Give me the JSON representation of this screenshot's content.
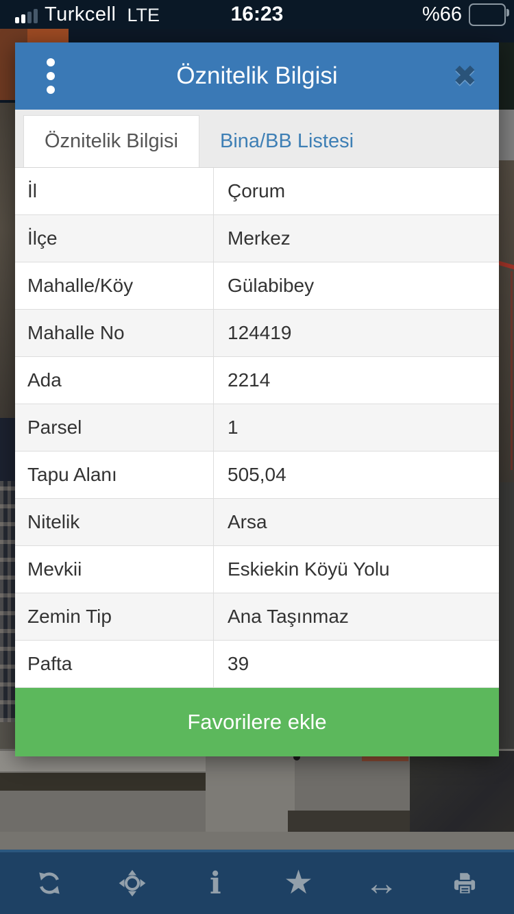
{
  "status_bar": {
    "carrier": "Turkcell",
    "network": "LTE",
    "time": "16:23",
    "battery_percent": "%66",
    "battery_level": 66,
    "signal_bars_filled": 2
  },
  "modal": {
    "title": "Öznitelik Bilgisi",
    "menu_icon": "vertical-dots",
    "close_glyph": "✖",
    "tabs": [
      {
        "label": "Öznitelik Bilgisi",
        "active": true
      },
      {
        "label": "Bina/BB Listesi",
        "active": false
      }
    ],
    "rows": [
      {
        "label": "İl",
        "value": "Çorum"
      },
      {
        "label": "İlçe",
        "value": "Merkez"
      },
      {
        "label": "Mahalle/Köy",
        "value": "Gülabibey"
      },
      {
        "label": "Mahalle No",
        "value": "124419"
      },
      {
        "label": "Ada",
        "value": "2214"
      },
      {
        "label": "Parsel",
        "value": "1"
      },
      {
        "label": "Tapu Alanı",
        "value": "505,04"
      },
      {
        "label": "Nitelik",
        "value": "Arsa"
      },
      {
        "label": "Mevkii",
        "value": "Eskiekin Köyü Yolu"
      },
      {
        "label": "Zemin Tip",
        "value": "Ana Taşınmaz"
      },
      {
        "label": "Pafta",
        "value": "39"
      }
    ],
    "favorite_button_label": "Favorilere ekle"
  },
  "toolbar": {
    "icons": [
      "refresh",
      "locate",
      "info",
      "favorites",
      "measure",
      "print"
    ],
    "info_glyph": "i",
    "star_glyph": "★",
    "arrow_glyph": "↔"
  },
  "colors": {
    "header_blue": "#3a79b6",
    "tab_link_blue": "#3e7fb5",
    "button_green": "#5cb85c",
    "toolbar_navy": "#1e4164",
    "statusbar_navy": "#0a1826",
    "row_alt_gray": "#f5f5f5"
  }
}
